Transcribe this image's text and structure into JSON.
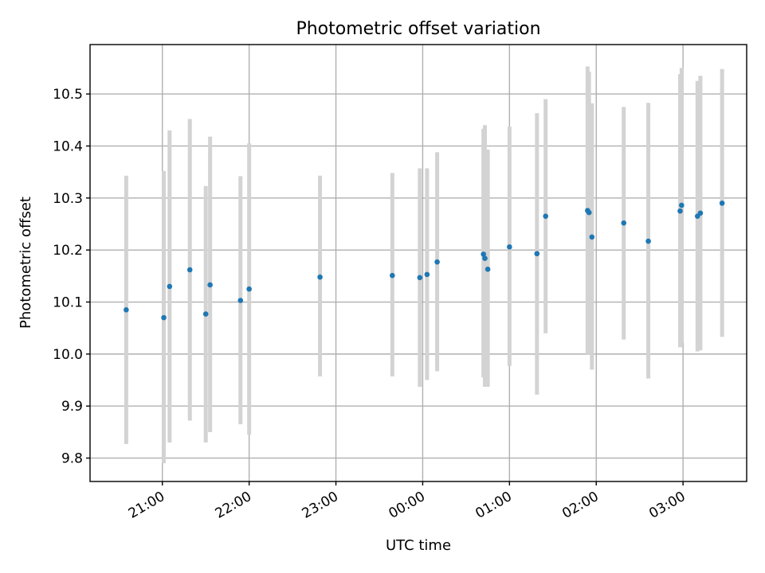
{
  "chart_data": {
    "type": "scatter",
    "title": "Photometric offset variation",
    "xlabel": "UTC time",
    "ylabel": "Photometric offset",
    "x_axis_type": "time",
    "xlim": [
      "20:10",
      "27:44"
    ],
    "ylim": [
      9.755,
      10.595
    ],
    "grid": true,
    "x_ticks": [
      {
        "label": "21:00",
        "value": "21:00"
      },
      {
        "label": "22:00",
        "value": "22:00"
      },
      {
        "label": "23:00",
        "value": "23:00"
      },
      {
        "label": "00:00",
        "value": "24:00"
      },
      {
        "label": "01:00",
        "value": "25:00"
      },
      {
        "label": "02:00",
        "value": "26:00"
      },
      {
        "label": "03:00",
        "value": "27:00"
      }
    ],
    "y_ticks": [
      "9.8",
      "9.9",
      "10.0",
      "10.1",
      "10.2",
      "10.3",
      "10.4",
      "10.5"
    ],
    "colors": {
      "point": "#1f77b4",
      "errorbar": "#d3d3d3",
      "grid": "#b0b0b0"
    },
    "points": [
      {
        "time": "20:35",
        "y": 10.085,
        "ylow": 9.827,
        "yhigh": 10.343
      },
      {
        "time": "21:01",
        "y": 10.07,
        "ylow": 9.79,
        "yhigh": 10.352
      },
      {
        "time": "21:05",
        "y": 10.13,
        "ylow": 9.83,
        "yhigh": 10.43
      },
      {
        "time": "21:19",
        "y": 10.162,
        "ylow": 9.872,
        "yhigh": 10.452
      },
      {
        "time": "21:30",
        "y": 10.077,
        "ylow": 9.83,
        "yhigh": 10.323
      },
      {
        "time": "21:33",
        "y": 10.133,
        "ylow": 9.85,
        "yhigh": 10.418
      },
      {
        "time": "21:54",
        "y": 10.103,
        "ylow": 9.865,
        "yhigh": 10.342
      },
      {
        "time": "22:00",
        "y": 10.125,
        "ylow": 9.845,
        "yhigh": 10.405
      },
      {
        "time": "22:49",
        "y": 10.148,
        "ylow": 9.957,
        "yhigh": 10.343
      },
      {
        "time": "23:39",
        "y": 10.151,
        "ylow": 9.957,
        "yhigh": 10.348
      },
      {
        "time": "23:58",
        "y": 10.147,
        "ylow": 9.937,
        "yhigh": 10.357
      },
      {
        "time": "24:03",
        "y": 10.153,
        "ylow": 9.95,
        "yhigh": 10.357
      },
      {
        "time": "24:10",
        "y": 10.177,
        "ylow": 9.967,
        "yhigh": 10.388
      },
      {
        "time": "24:42",
        "y": 10.192,
        "ylow": 9.955,
        "yhigh": 10.433
      },
      {
        "time": "24:43",
        "y": 10.184,
        "ylow": 9.937,
        "yhigh": 10.44
      },
      {
        "time": "24:45",
        "y": 10.163,
        "ylow": 9.937,
        "yhigh": 10.393
      },
      {
        "time": "25:00",
        "y": 10.206,
        "ylow": 9.977,
        "yhigh": 10.437
      },
      {
        "time": "25:19",
        "y": 10.193,
        "ylow": 9.922,
        "yhigh": 10.463
      },
      {
        "time": "25:25",
        "y": 10.265,
        "ylow": 10.04,
        "yhigh": 10.49
      },
      {
        "time": "25:54",
        "y": 10.276,
        "ylow": 10.0,
        "yhigh": 10.553
      },
      {
        "time": "25:55",
        "y": 10.272,
        "ylow": 10.0,
        "yhigh": 10.543
      },
      {
        "time": "25:57",
        "y": 10.225,
        "ylow": 9.97,
        "yhigh": 10.482
      },
      {
        "time": "26:19",
        "y": 10.252,
        "ylow": 10.028,
        "yhigh": 10.475
      },
      {
        "time": "26:36",
        "y": 10.217,
        "ylow": 9.953,
        "yhigh": 10.483
      },
      {
        "time": "26:58",
        "y": 10.275,
        "ylow": 10.013,
        "yhigh": 10.538
      },
      {
        "time": "26:59",
        "y": 10.286,
        "ylow": 10.022,
        "yhigh": 10.55
      },
      {
        "time": "27:10",
        "y": 10.265,
        "ylow": 10.005,
        "yhigh": 10.525
      },
      {
        "time": "27:12",
        "y": 10.271,
        "ylow": 10.007,
        "yhigh": 10.535
      },
      {
        "time": "27:27",
        "y": 10.29,
        "ylow": 10.033,
        "yhigh": 10.548
      }
    ]
  }
}
